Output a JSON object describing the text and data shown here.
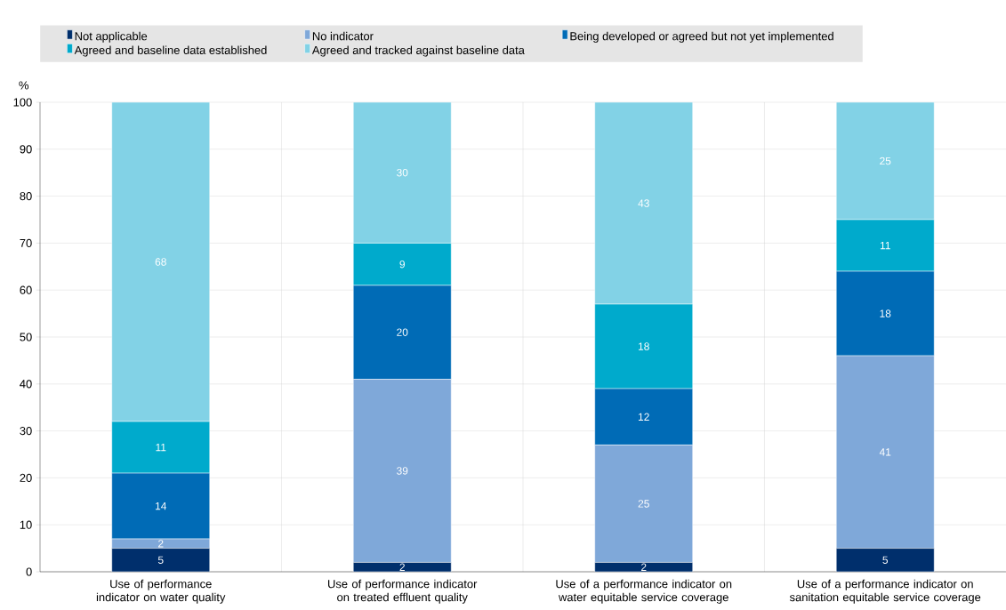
{
  "chart_data": {
    "type": "bar",
    "stacked": true,
    "ylabel": "%",
    "categories": [
      "Use of performance indicator on water quality",
      "Use of performance indicator on treated effluent quality",
      "Use of a performance indicator on water equitable service coverage",
      "Use of a performance indicator on sanitation equitable service coverage"
    ],
    "series": [
      {
        "name": "Not applicable",
        "color": "#002f6c",
        "values": [
          5,
          2,
          2,
          5
        ]
      },
      {
        "name": "No indicator",
        "color": "#7fa8d9",
        "values": [
          2,
          39,
          25,
          41
        ]
      },
      {
        "name": "Being developed or agreed but not yet implemented",
        "color": "#006bb6",
        "values": [
          14,
          20,
          12,
          18
        ]
      },
      {
        "name": "Agreed and baseline data established",
        "color": "#00aacc",
        "values": [
          11,
          9,
          18,
          11
        ]
      },
      {
        "name": "Agreed and tracked against baseline data",
        "color": "#82d2e6",
        "values": [
          68,
          30,
          43,
          25
        ]
      }
    ],
    "ylim": [
      0,
      100
    ],
    "yticks": [
      0,
      10,
      20,
      30,
      40,
      50,
      60,
      70,
      80,
      90,
      100
    ],
    "grid": true,
    "legend": "top",
    "data_labels": true
  }
}
